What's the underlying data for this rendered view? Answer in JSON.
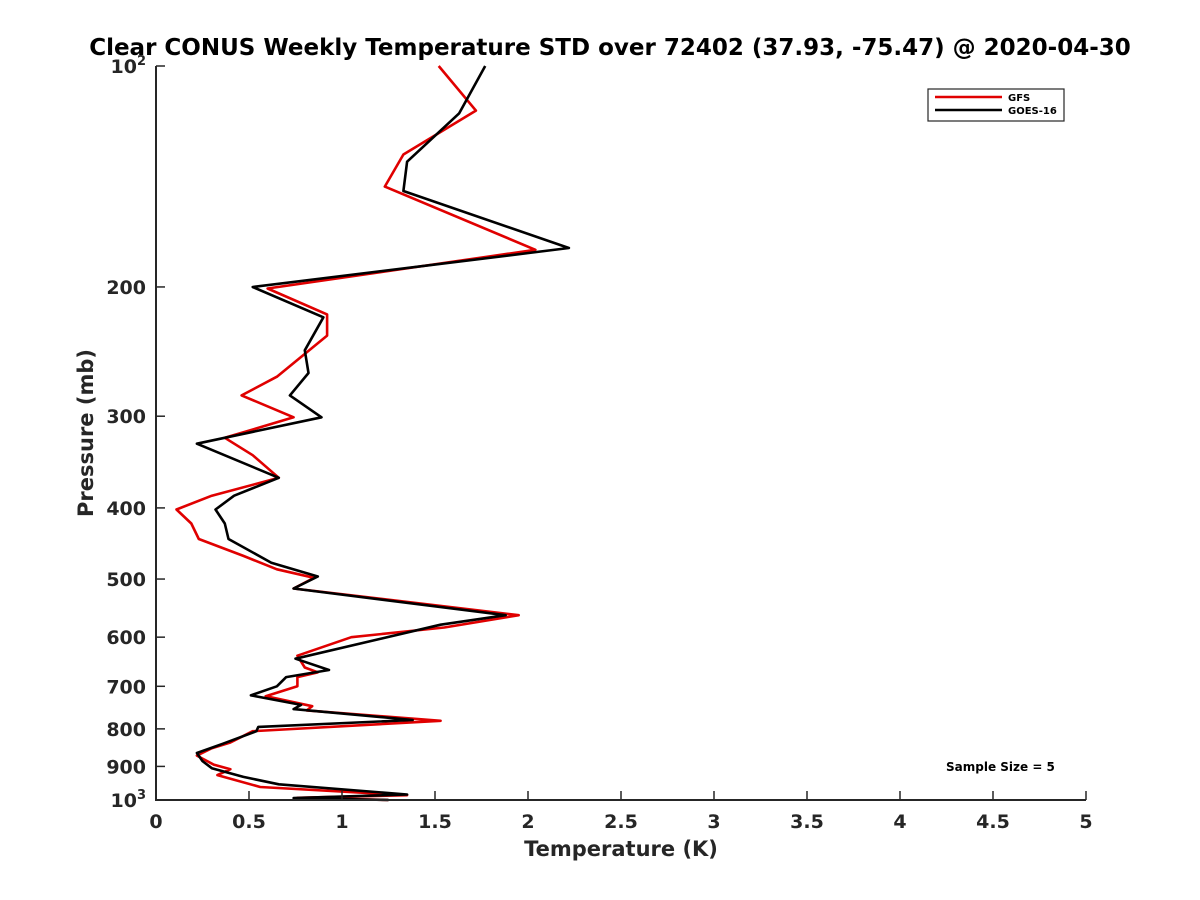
{
  "chart_data": {
    "type": "line",
    "title": "Clear CONUS Weekly Temperature STD over 72402 (37.93, -75.47) @ 2020-04-30",
    "xlabel": "Temperature (K)",
    "ylabel": "Pressure (mb)",
    "xlim": [
      0,
      5
    ],
    "ylim": [
      100,
      1000
    ],
    "y_scale": "log",
    "y_reversed": true,
    "grid": false,
    "legend_position": "top-right",
    "annotation": "Sample Size = 5",
    "x_ticks": [
      {
        "value": 0,
        "label": "0"
      },
      {
        "value": 0.5,
        "label": "0.5"
      },
      {
        "value": 1,
        "label": "1"
      },
      {
        "value": 1.5,
        "label": "1.5"
      },
      {
        "value": 2,
        "label": "2"
      },
      {
        "value": 2.5,
        "label": "2.5"
      },
      {
        "value": 3,
        "label": "3"
      },
      {
        "value": 3.5,
        "label": "3.5"
      },
      {
        "value": 4,
        "label": "4"
      },
      {
        "value": 4.5,
        "label": "4.5"
      },
      {
        "value": 5,
        "label": "5"
      }
    ],
    "y_ticks": [
      {
        "value": 100,
        "base": "10",
        "exp": "2"
      },
      {
        "value": 200,
        "base": "200",
        "exp": ""
      },
      {
        "value": 300,
        "base": "300",
        "exp": ""
      },
      {
        "value": 400,
        "base": "400",
        "exp": ""
      },
      {
        "value": 500,
        "base": "500",
        "exp": ""
      },
      {
        "value": 600,
        "base": "600",
        "exp": ""
      },
      {
        "value": 700,
        "base": "700",
        "exp": ""
      },
      {
        "value": 800,
        "base": "800",
        "exp": ""
      },
      {
        "value": 900,
        "base": "900",
        "exp": ""
      },
      {
        "value": 1000,
        "base": "10",
        "exp": "3"
      }
    ],
    "series": [
      {
        "name": "GFS",
        "color": "#e00000",
        "points": [
          [
            1.52,
            100
          ],
          [
            1.72,
            115
          ],
          [
            1.33,
            132
          ],
          [
            1.23,
            146
          ],
          [
            2.04,
            178
          ],
          [
            0.6,
            201
          ],
          [
            0.92,
            218
          ],
          [
            0.92,
            233
          ],
          [
            0.65,
            265
          ],
          [
            0.46,
            281
          ],
          [
            0.74,
            301
          ],
          [
            0.37,
            321
          ],
          [
            0.52,
            339
          ],
          [
            0.66,
            364
          ],
          [
            0.3,
            385
          ],
          [
            0.11,
            402
          ],
          [
            0.19,
            420
          ],
          [
            0.23,
            441
          ],
          [
            0.47,
            465
          ],
          [
            0.65,
            485
          ],
          [
            0.85,
            498
          ],
          [
            0.74,
            515
          ],
          [
            1.95,
            560
          ],
          [
            1.55,
            582
          ],
          [
            1.05,
            600
          ],
          [
            0.76,
            636
          ],
          [
            0.8,
            660
          ],
          [
            0.87,
            670
          ],
          [
            0.76,
            680
          ],
          [
            0.76,
            700
          ],
          [
            0.59,
            722
          ],
          [
            0.84,
            745
          ],
          [
            0.81,
            755
          ],
          [
            1.53,
            780
          ],
          [
            0.52,
            806
          ],
          [
            0.4,
            835
          ],
          [
            0.3,
            850
          ],
          [
            0.22,
            870
          ],
          [
            0.31,
            895
          ],
          [
            0.4,
            908
          ],
          [
            0.33,
            925
          ],
          [
            0.56,
            960
          ],
          [
            1.35,
            985
          ],
          [
            0.76,
            993
          ],
          [
            1.25,
            1000
          ]
        ]
      },
      {
        "name": "GOES-16",
        "color": "#000000",
        "points": [
          [
            1.77,
            100
          ],
          [
            1.63,
            116
          ],
          [
            1.35,
            135
          ],
          [
            1.33,
            148
          ],
          [
            2.22,
            177
          ],
          [
            0.52,
            200
          ],
          [
            0.9,
            220
          ],
          [
            0.8,
            244
          ],
          [
            0.82,
            262
          ],
          [
            0.72,
            281
          ],
          [
            0.89,
            301
          ],
          [
            0.22,
            327
          ],
          [
            0.66,
            364
          ],
          [
            0.42,
            385
          ],
          [
            0.32,
            402
          ],
          [
            0.37,
            420
          ],
          [
            0.39,
            441
          ],
          [
            0.62,
            475
          ],
          [
            0.87,
            496
          ],
          [
            0.74,
            515
          ],
          [
            1.88,
            560
          ],
          [
            1.53,
            577
          ],
          [
            0.75,
            642
          ],
          [
            0.93,
            665
          ],
          [
            0.7,
            680
          ],
          [
            0.65,
            700
          ],
          [
            0.51,
            720
          ],
          [
            0.78,
            742
          ],
          [
            0.74,
            752
          ],
          [
            1.38,
            778
          ],
          [
            0.55,
            795
          ],
          [
            0.54,
            806
          ],
          [
            0.36,
            838
          ],
          [
            0.22,
            863
          ],
          [
            0.25,
            885
          ],
          [
            0.3,
            905
          ],
          [
            0.47,
            930
          ],
          [
            0.66,
            952
          ],
          [
            1.35,
            983
          ],
          [
            0.74,
            994
          ],
          [
            1.25,
            1000
          ]
        ]
      }
    ]
  }
}
